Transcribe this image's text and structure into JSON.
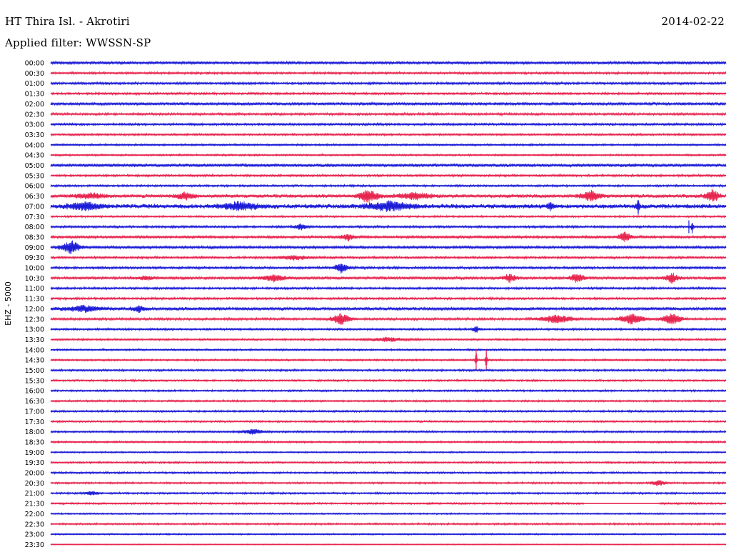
{
  "header": {
    "station": "HT Thira Isl. - Akrotiri",
    "date": "2014-02-22",
    "filter": "Applied filter: WWSSN-SP"
  },
  "colors": {
    "trace_a": "#1c1cd8",
    "trace_b": "#e8254f",
    "text": "#000000",
    "background": "#ffffff"
  },
  "chart_data": {
    "type": "line",
    "title": "HT Thira Isl. - Akrotiri",
    "ylabel": "EHZ - 5000",
    "xlabel": "",
    "grid": false,
    "legend": "none",
    "row_interval_minutes": 30,
    "categories": [
      "00:00",
      "00:30",
      "01:00",
      "01:30",
      "02:00",
      "02:30",
      "03:00",
      "03:30",
      "04:00",
      "04:30",
      "05:00",
      "05:30",
      "06:00",
      "06:30",
      "07:00",
      "07:30",
      "08:00",
      "08:30",
      "09:00",
      "09:30",
      "10:00",
      "10:30",
      "11:00",
      "11:30",
      "12:00",
      "12:30",
      "13:00",
      "13:30",
      "14:00",
      "14:30",
      "15:00",
      "15:30",
      "16:00",
      "16:30",
      "17:00",
      "17:30",
      "18:00",
      "18:30",
      "19:00",
      "19:30",
      "20:00",
      "20:30",
      "21:00",
      "21:30",
      "22:00",
      "22:30",
      "23:00",
      "23:30"
    ],
    "row_colors": [
      "trace_a",
      "trace_b"
    ],
    "noise_level": [
      1.5,
      1.2,
      1.3,
      1.2,
      1.6,
      1.3,
      1.2,
      1.1,
      1.0,
      1.0,
      1.8,
      1.2,
      1.1,
      2.0,
      2.5,
      1.0,
      1.2,
      1.4,
      1.5,
      1.2,
      1.3,
      1.6,
      1.2,
      1.2,
      1.8,
      1.3,
      1.1,
      1.0,
      1.0,
      1.0,
      1.1,
      1.0,
      1.0,
      1.0,
      1.0,
      1.0,
      1.0,
      1.0,
      0.8,
      1.0,
      1.0,
      1.0,
      1.0,
      1.0,
      0.8,
      1.0,
      0.8,
      0.5
    ],
    "events": [
      {
        "row": 13,
        "t": 0.06,
        "amp": 4,
        "dur": 0.04
      },
      {
        "row": 13,
        "t": 0.2,
        "amp": 5,
        "dur": 0.03
      },
      {
        "row": 13,
        "t": 0.47,
        "amp": 9,
        "dur": 0.03
      },
      {
        "row": 13,
        "t": 0.54,
        "amp": 5,
        "dur": 0.05
      },
      {
        "row": 13,
        "t": 0.8,
        "amp": 7,
        "dur": 0.03
      },
      {
        "row": 13,
        "t": 0.98,
        "amp": 9,
        "dur": 0.02
      },
      {
        "row": 14,
        "t": 0.05,
        "amp": 5,
        "dur": 0.05
      },
      {
        "row": 14,
        "t": 0.28,
        "amp": 5,
        "dur": 0.06
      },
      {
        "row": 14,
        "t": 0.5,
        "amp": 6,
        "dur": 0.07
      },
      {
        "row": 14,
        "t": 0.74,
        "amp": 6,
        "dur": 0.01
      },
      {
        "row": 14,
        "t": 0.87,
        "amp": 10,
        "dur": 0.005
      },
      {
        "row": 16,
        "t": 0.37,
        "amp": 4,
        "dur": 0.02
      },
      {
        "row": 16,
        "t": 0.95,
        "amp": 9,
        "dur": 0.004
      },
      {
        "row": 17,
        "t": 0.44,
        "amp": 5,
        "dur": 0.02
      },
      {
        "row": 17,
        "t": 0.85,
        "amp": 7,
        "dur": 0.02
      },
      {
        "row": 18,
        "t": 0.03,
        "amp": 9,
        "dur": 0.03
      },
      {
        "row": 19,
        "t": 0.36,
        "amp": 3,
        "dur": 0.05
      },
      {
        "row": 20,
        "t": 0.43,
        "amp": 8,
        "dur": 0.02
      },
      {
        "row": 21,
        "t": 0.14,
        "amp": 3,
        "dur": 0.02
      },
      {
        "row": 21,
        "t": 0.33,
        "amp": 4,
        "dur": 0.04
      },
      {
        "row": 21,
        "t": 0.68,
        "amp": 6,
        "dur": 0.02
      },
      {
        "row": 21,
        "t": 0.78,
        "amp": 7,
        "dur": 0.02
      },
      {
        "row": 21,
        "t": 0.92,
        "amp": 7,
        "dur": 0.02
      },
      {
        "row": 24,
        "t": 0.05,
        "amp": 4,
        "dur": 0.06
      },
      {
        "row": 24,
        "t": 0.13,
        "amp": 4,
        "dur": 0.02
      },
      {
        "row": 25,
        "t": 0.43,
        "amp": 8,
        "dur": 0.03
      },
      {
        "row": 25,
        "t": 0.75,
        "amp": 6,
        "dur": 0.05
      },
      {
        "row": 25,
        "t": 0.86,
        "amp": 7,
        "dur": 0.04
      },
      {
        "row": 25,
        "t": 0.92,
        "amp": 8,
        "dur": 0.03
      },
      {
        "row": 26,
        "t": 0.63,
        "amp": 5,
        "dur": 0.01
      },
      {
        "row": 27,
        "t": 0.5,
        "amp": 3,
        "dur": 0.06
      },
      {
        "row": 29,
        "t": 0.63,
        "amp": 15,
        "dur": 0.003
      },
      {
        "row": 29,
        "t": 0.645,
        "amp": 14,
        "dur": 0.003
      },
      {
        "row": 36,
        "t": 0.3,
        "amp": 4,
        "dur": 0.03
      },
      {
        "row": 41,
        "t": 0.9,
        "amp": 4,
        "dur": 0.02
      },
      {
        "row": 42,
        "t": 0.06,
        "amp": 3,
        "dur": 0.02
      }
    ],
    "spikes": [
      {
        "row": 14,
        "t": 0.87,
        "amp": 9
      },
      {
        "row": 16,
        "t": 0.945,
        "amp": 9
      },
      {
        "row": 29,
        "t": 0.63,
        "amp": 15
      },
      {
        "row": 29,
        "t": 0.645,
        "amp": 14
      }
    ],
    "data_gaps": [
      {
        "row": 43,
        "from": 0.79,
        "to": 0.9
      }
    ]
  }
}
